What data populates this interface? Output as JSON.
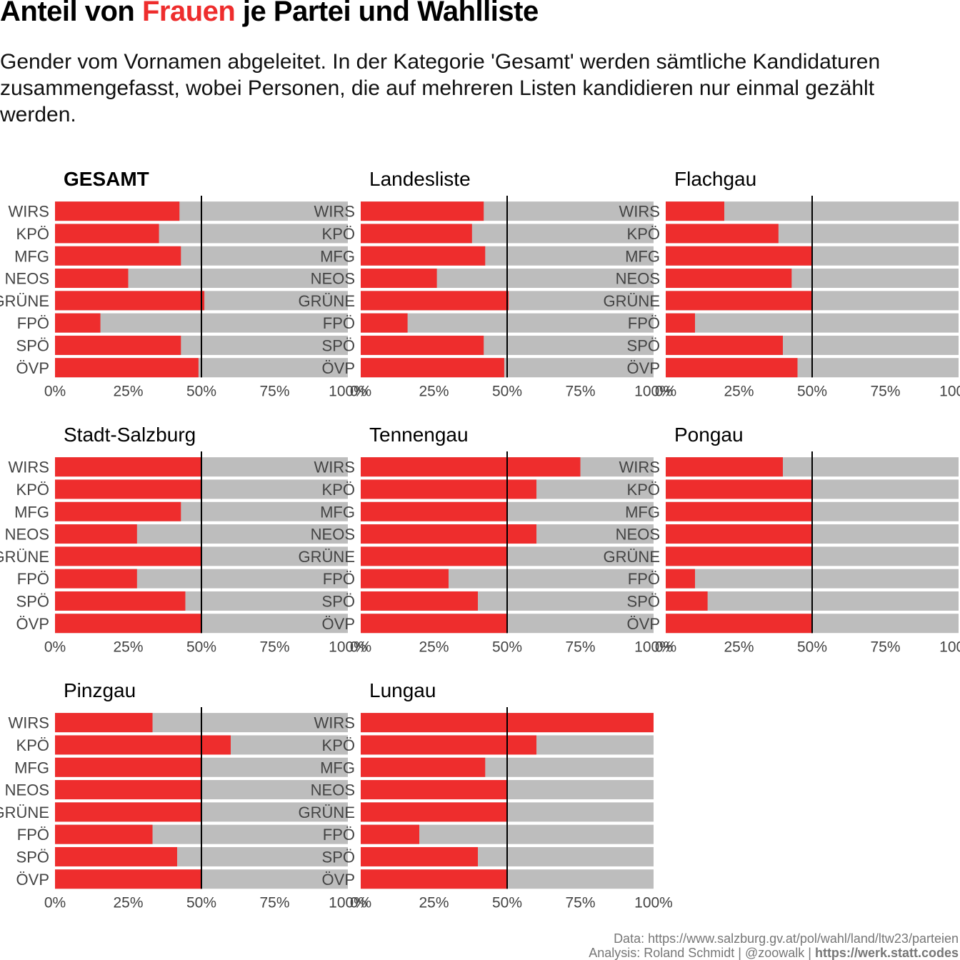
{
  "header": {
    "title_before": "Anteil von ",
    "title_highlight": "Frauen",
    "title_after": " je Partei und Wahlliste",
    "subtitle": "Gender vom Vornamen abgeleitet. In der Kategorie 'Gesamt' werden sämtliche Kandidaturen zusammengefasst, wobei Personen, die auf mehreren Listen kandidieren nur einmal gezählt werden."
  },
  "caption": {
    "line1": "Data: https://www.salzburg.gv.at/pol/wahl/land/ltw23/parteien",
    "line2_text": "Analysis: Roland Schmidt | @zoowalk | ",
    "line2_link": "https://werk.statt.codes"
  },
  "colors": {
    "women": "#ee2d2d",
    "rest": "#bdbdbd",
    "reference_line": "#000000"
  },
  "chart_data": {
    "type": "bar",
    "orientation": "horizontal",
    "stacked": true,
    "categories": [
      "WIRS",
      "KPÖ",
      "MFG",
      "NEOS",
      "GRÜNE",
      "FPÖ",
      "SPÖ",
      "ÖVP"
    ],
    "xlim": [
      0,
      1
    ],
    "x_ticks": [
      "0%",
      "25%",
      "50%",
      "75%",
      "100%"
    ],
    "reference_line": 0.5,
    "panels": [
      {
        "title": "GESAMT",
        "values": [
          0.425,
          0.355,
          0.43,
          0.25,
          0.51,
          0.155,
          0.43,
          0.49
        ]
      },
      {
        "title": "Landesliste",
        "values": [
          0.42,
          0.38,
          0.425,
          0.26,
          0.505,
          0.16,
          0.42,
          0.49
        ]
      },
      {
        "title": "Flachgau",
        "values": [
          0.2,
          0.385,
          0.5,
          0.43,
          0.5,
          0.1,
          0.4,
          0.45
        ]
      },
      {
        "title": "Stadt-Salzburg",
        "values": [
          0.5,
          0.5,
          0.43,
          0.28,
          0.5,
          0.28,
          0.445,
          0.5
        ]
      },
      {
        "title": "Tennengau",
        "values": [
          0.75,
          0.6,
          0.5,
          0.6,
          0.5,
          0.3,
          0.4,
          0.5
        ]
      },
      {
        "title": "Pongau",
        "values": [
          0.4,
          0.5,
          0.5,
          0.5,
          0.5,
          0.1,
          0.143,
          0.5
        ]
      },
      {
        "title": "Pinzgau",
        "values": [
          0.333,
          0.6,
          0.5,
          0.5,
          0.5,
          0.333,
          0.417,
          0.5
        ]
      },
      {
        "title": "Lungau",
        "values": [
          1.0,
          0.6,
          0.425,
          0.5,
          0.5,
          0.2,
          0.4,
          0.5
        ]
      }
    ]
  }
}
